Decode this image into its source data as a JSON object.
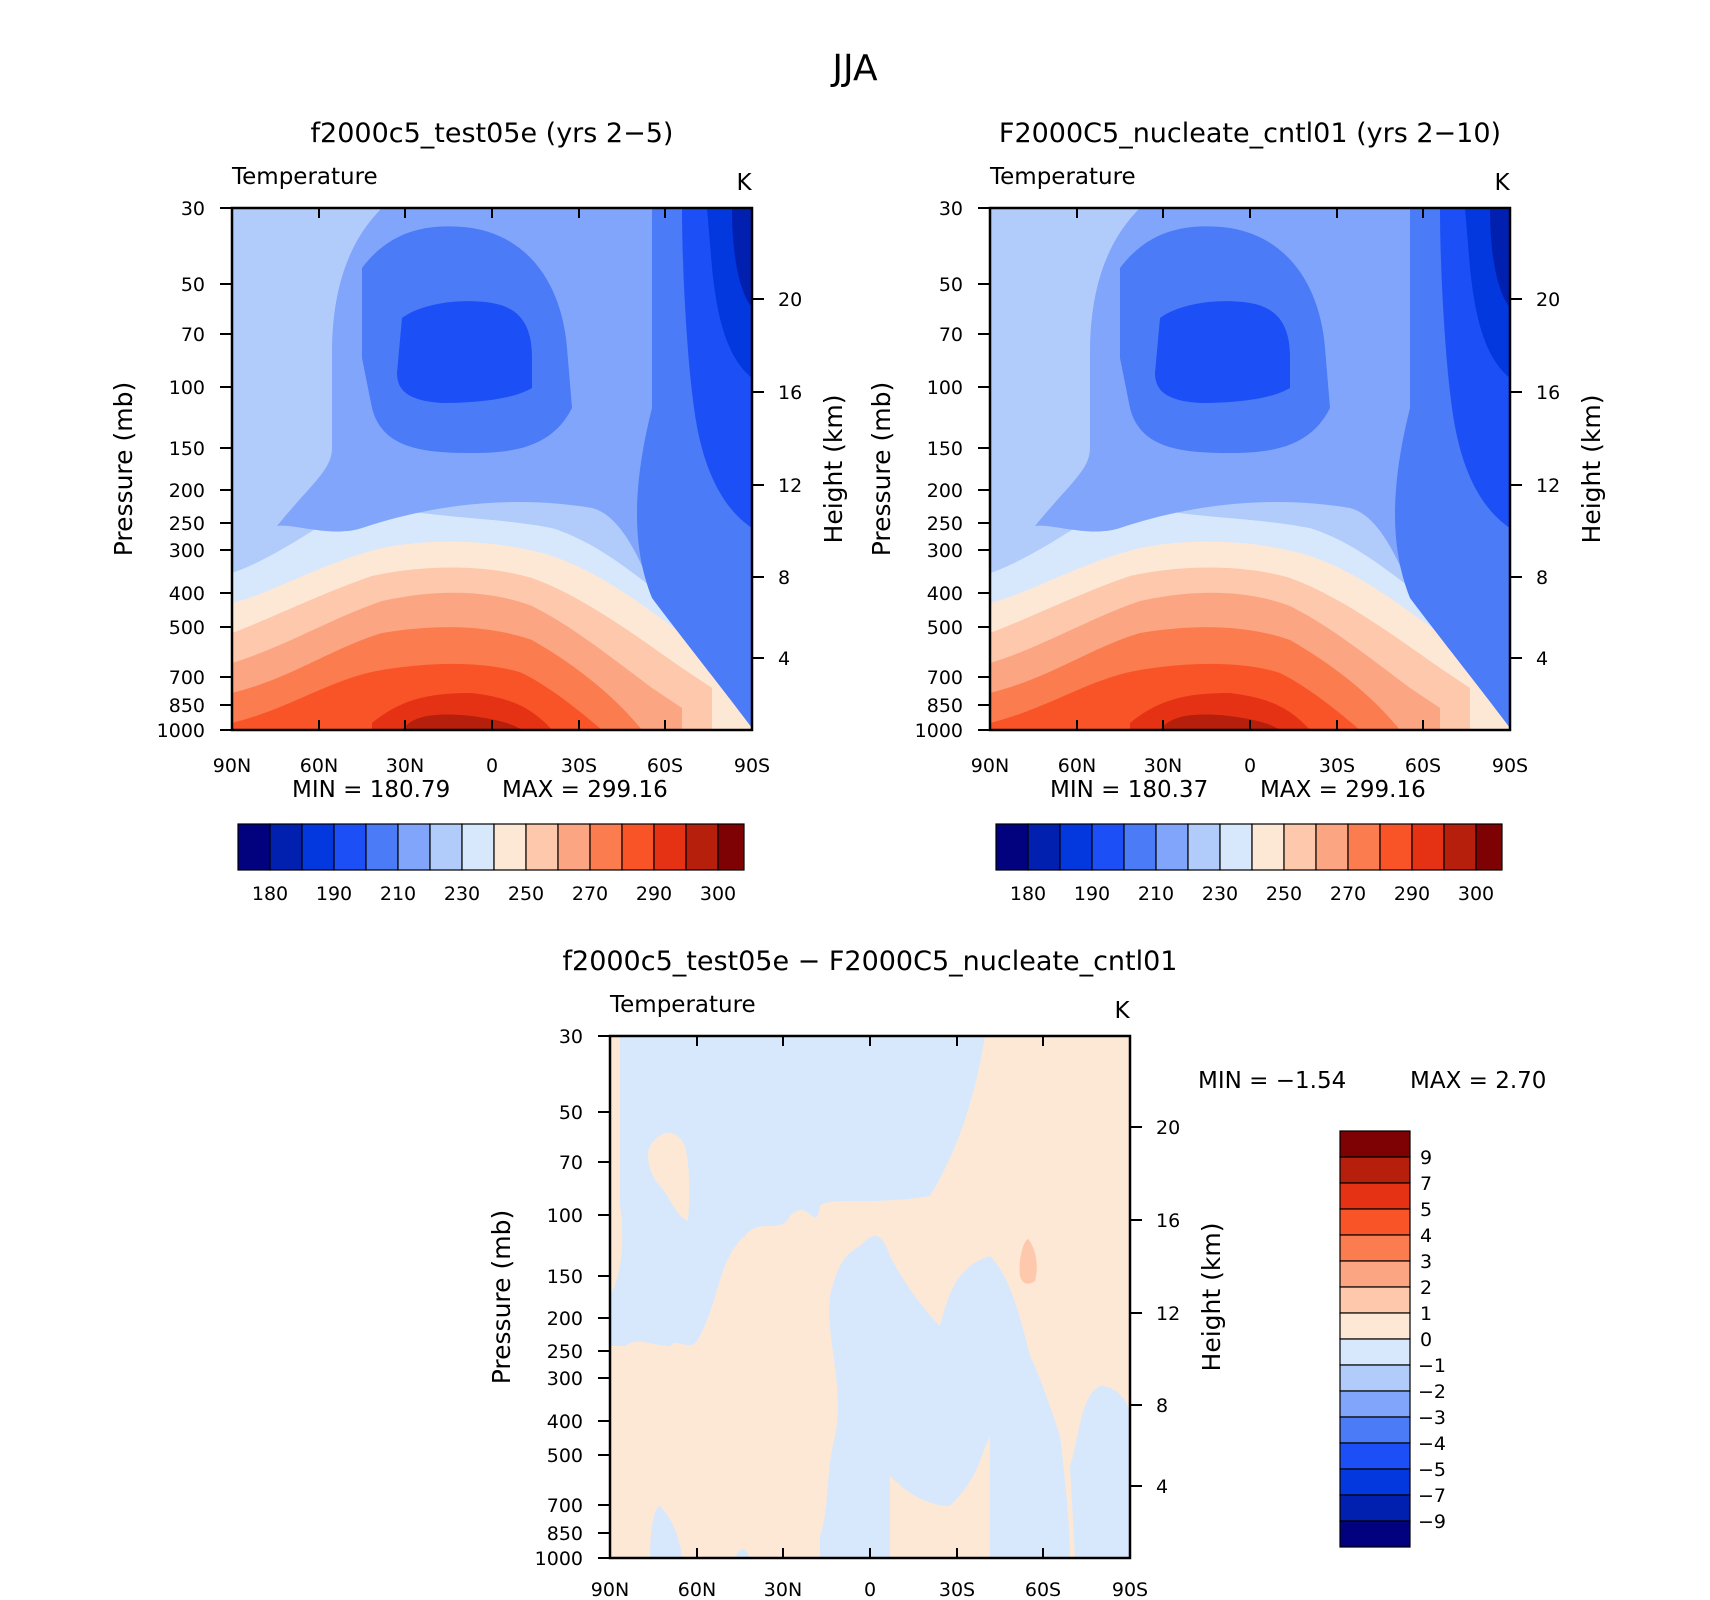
{
  "figure": {
    "title": "JJA",
    "diff_title": "f2000c5_test05e − F2000C5_nucleate_cntl01"
  },
  "colors": {
    "abs_palette": [
      "#03027e",
      "#0220b0",
      "#0238de",
      "#1d4ff7",
      "#4b7bf6",
      "#80a5fb",
      "#b1cbfb",
      "#d7e8fd",
      "#fde8d6",
      "#fdc8ac",
      "#fca583",
      "#fb7c4e",
      "#f95428",
      "#e53215",
      "#b51f0c",
      "#7e0203"
    ],
    "diff_palette": [
      "#7e0203",
      "#b51f0c",
      "#e53215",
      "#f95428",
      "#fb7c4e",
      "#fca583",
      "#fdc8ac",
      "#fde8d6",
      "#d7e8fd",
      "#b1cbfb",
      "#80a5fb",
      "#4b7bf6",
      "#1d4ff7",
      "#0238de",
      "#0220b0",
      "#03027e"
    ]
  },
  "chart_data": [
    {
      "type": "heatmap",
      "title": "f2000c5_test05e (yrs 2−5)",
      "corner_left": "Temperature",
      "units": "K",
      "ylabel": "Pressure (mb)",
      "y2label": "Height (km)",
      "x_ticks": [
        "90N",
        "60N",
        "30N",
        "0",
        "30S",
        "60S",
        "90S"
      ],
      "x_range": [
        90,
        -90
      ],
      "y_ticks": [
        30,
        50,
        70,
        100,
        150,
        200,
        250,
        300,
        400,
        500,
        700,
        850,
        1000
      ],
      "y_range": [
        30,
        1000
      ],
      "y_scale": "log",
      "y2_ticks": [
        4,
        8,
        12,
        16,
        20
      ],
      "min_label": "MIN =  180.79",
      "max_label": "MAX =  299.16",
      "colorbar_labels": [
        "180",
        "190",
        "210",
        "230",
        "250",
        "270",
        "290",
        "300"
      ]
    },
    {
      "type": "heatmap",
      "title": "F2000C5_nucleate_cntl01 (yrs 2−10)",
      "corner_left": "Temperature",
      "units": "K",
      "ylabel": "Pressure (mb)",
      "y2label": "Height (km)",
      "x_ticks": [
        "90N",
        "60N",
        "30N",
        "0",
        "30S",
        "60S",
        "90S"
      ],
      "x_range": [
        90,
        -90
      ],
      "y_ticks": [
        30,
        50,
        70,
        100,
        150,
        200,
        250,
        300,
        400,
        500,
        700,
        850,
        1000
      ],
      "y_range": [
        30,
        1000
      ],
      "y_scale": "log",
      "y2_ticks": [
        4,
        8,
        12,
        16,
        20
      ],
      "min_label": "MIN =  180.37",
      "max_label": "MAX =  299.16",
      "colorbar_labels": [
        "180",
        "190",
        "210",
        "230",
        "250",
        "270",
        "290",
        "300"
      ]
    },
    {
      "type": "heatmap",
      "title": "",
      "corner_left": "Temperature",
      "units": "K",
      "ylabel": "Pressure (mb)",
      "y2label": "Height (km)",
      "x_ticks": [
        "90N",
        "60N",
        "30N",
        "0",
        "30S",
        "60S",
        "90S"
      ],
      "x_range": [
        90,
        -90
      ],
      "y_ticks": [
        30,
        50,
        70,
        100,
        150,
        200,
        250,
        300,
        400,
        500,
        700,
        850,
        1000
      ],
      "y_range": [
        30,
        1000
      ],
      "y_scale": "log",
      "y2_ticks": [
        4,
        8,
        12,
        16,
        20
      ],
      "min_label": "MIN =   −1.54",
      "max_label": "MAX =    2.70",
      "colorbar_labels": [
        "9",
        "7",
        "5",
        "4",
        "3",
        "2",
        "1",
        "0",
        "−1",
        "−2",
        "−3",
        "−4",
        "−5",
        "−7",
        "−9"
      ]
    }
  ]
}
